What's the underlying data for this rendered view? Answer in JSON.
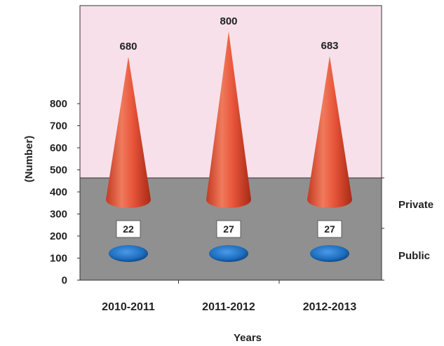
{
  "chart_data": {
    "type": "bar",
    "title": "",
    "xlabel": "Years",
    "ylabel": "(Number)",
    "categories": [
      "2010-2011",
      "2011-2012",
      "2012-2013"
    ],
    "yticks": [
      0,
      100,
      200,
      300,
      400,
      500,
      600,
      700,
      800
    ],
    "ylim": [
      0,
      800
    ],
    "series": [
      {
        "name": "Private",
        "values": [
          680,
          800,
          683
        ],
        "color": "#e8553a"
      },
      {
        "name": "Public",
        "values": [
          22,
          27,
          27
        ],
        "color": "#1f6fc0"
      }
    ],
    "value_labels": {
      "private": [
        "680",
        "800",
        "683"
      ],
      "public": [
        "22",
        "27",
        "27"
      ]
    },
    "legend": {
      "placement": "right",
      "entries": [
        "Private",
        "Public"
      ]
    },
    "grid": false,
    "colors": {
      "back_wall": "#f7e0ea",
      "floor": "#909090"
    }
  }
}
